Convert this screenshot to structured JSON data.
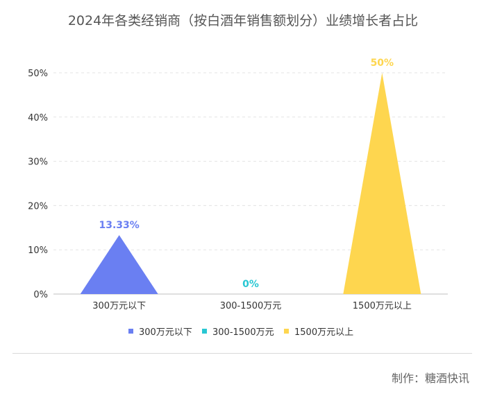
{
  "chart_data": {
    "type": "bar",
    "shape": "triangle",
    "title": "2024年各类经销商（按白酒年销售额划分）业绩增长者占比",
    "xlabel": "",
    "ylabel": "",
    "categories": [
      "300万元以下",
      "300-1500万元",
      "1500万元以上"
    ],
    "values": [
      13.33,
      0,
      50
    ],
    "value_labels": [
      "13.33%",
      "0%",
      "50%"
    ],
    "y_ticks": [
      "0%",
      "10%",
      "20%",
      "30%",
      "40%",
      "50%"
    ],
    "y_tick_values": [
      0,
      10,
      20,
      30,
      40,
      50
    ],
    "ylim": [
      0,
      50
    ],
    "grid": true,
    "legend_position": "bottom",
    "legend": [
      "300万元以下",
      "300-1500万元",
      "1500万元以上"
    ],
    "colors": [
      "#6a7ff2",
      "#28c7d3",
      "#fed64f"
    ]
  },
  "footer": {
    "credit": "制作：糖酒快讯"
  }
}
